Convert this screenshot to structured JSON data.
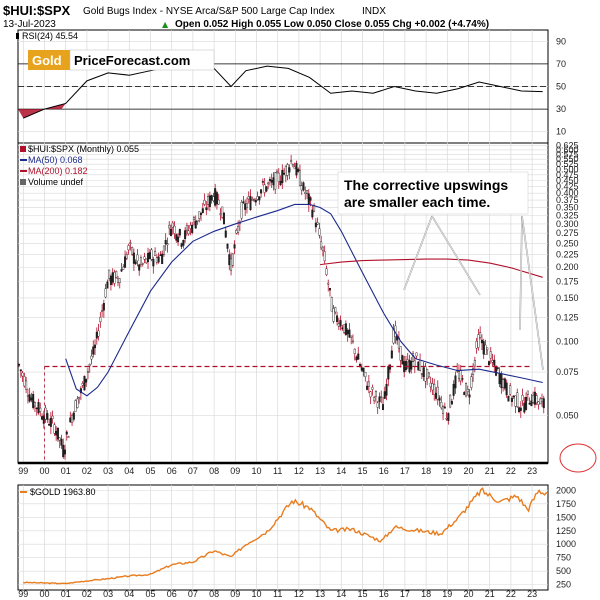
{
  "header": {
    "ticker": "$HUI:$SPX",
    "name": "Gold Bugs Index - NYSE Arca/S&P 500 Large Cap Index",
    "exchange": "INDX",
    "date": "13-Jul-2023",
    "ohlc": "Open 0.052  High 0.055  Low 0.050  Close 0.055  Chg +0.002 (+4.74%)",
    "ohlc_arrow": "▲"
  },
  "logo": {
    "gold": "Gold",
    "rest": "PriceForecast.com"
  },
  "colors": {
    "bars": "#b0102a",
    "ma50": "#1c2a8c",
    "ma200": "#b0102a",
    "gold": "#e87c1e",
    "rsi": "#000000",
    "grid": "#d9d9d9"
  },
  "chart_data": [
    {
      "type": "line",
      "panel": "rsi",
      "title": "RSI(24) 45.54",
      "yticks": [
        90,
        70,
        50,
        30,
        10
      ],
      "ylim": [
        0,
        100
      ],
      "reference_lines": [
        70,
        50,
        30
      ],
      "x": [
        1999.0,
        2000.0,
        2001.0,
        2002.0,
        2003.0,
        2004.0,
        2005.0,
        2006.0,
        2007.0,
        2008.0,
        2008.8,
        2009.5,
        2010.5,
        2011.5,
        2012.5,
        2013.5,
        2014.5,
        2015.5,
        2016.5,
        2017.5,
        2018.5,
        2019.5,
        2020.5,
        2021.5,
        2022.5,
        2023.5
      ],
      "values": [
        22,
        30,
        35,
        55,
        62,
        60,
        64,
        68,
        70,
        66,
        50,
        64,
        68,
        66,
        58,
        44,
        46,
        44,
        50,
        46,
        44,
        48,
        54,
        50,
        46,
        45.5
      ]
    },
    {
      "type": "candlestick",
      "panel": "main",
      "title": "$HUI:$SPX (Monthly) 0.055",
      "yscale": "log",
      "ylim": [
        0.032,
        0.64
      ],
      "yticks": [
        0.625,
        0.6,
        0.575,
        0.55,
        0.525,
        0.5,
        0.475,
        0.45,
        0.425,
        0.4,
        0.375,
        0.35,
        0.325,
        0.3,
        0.275,
        0.25,
        0.225,
        0.2,
        0.175,
        0.15,
        0.125,
        0.1,
        0.075,
        0.05
      ],
      "xticks": [
        "99",
        "00",
        "01",
        "02",
        "03",
        "04",
        "05",
        "06",
        "07",
        "08",
        "09",
        "10",
        "11",
        "12",
        "13",
        "14",
        "15",
        "16",
        "17",
        "18",
        "19",
        "20",
        "21",
        "22",
        "23"
      ],
      "xlim": [
        1998.75,
        2023.75
      ],
      "series": [
        {
          "name": "$HUI:$SPX (Monthly) 0.055",
          "x": [
            1998.8,
            1999.4,
            2000.0,
            2000.5,
            2000.9,
            2001.3,
            2001.8,
            2002.4,
            2003.0,
            2003.5,
            2004.0,
            2004.5,
            2005.0,
            2005.5,
            2006.0,
            2006.5,
            2007.0,
            2007.5,
            2008.0,
            2008.4,
            2008.8,
            2009.3,
            2009.8,
            2010.3,
            2010.8,
            2011.3,
            2011.7,
            2012.2,
            2012.7,
            2013.2,
            2013.6,
            2014.0,
            2014.5,
            2015.0,
            2015.5,
            2016.0,
            2016.5,
            2017.0,
            2017.5,
            2018.0,
            2018.5,
            2019.0,
            2019.5,
            2020.0,
            2020.5,
            2021.0,
            2021.5,
            2022.0,
            2022.5,
            2023.0,
            2023.5
          ],
          "values": [
            0.08,
            0.058,
            0.05,
            0.045,
            0.036,
            0.05,
            0.065,
            0.095,
            0.18,
            0.18,
            0.24,
            0.2,
            0.22,
            0.22,
            0.3,
            0.26,
            0.3,
            0.34,
            0.4,
            0.34,
            0.2,
            0.34,
            0.38,
            0.42,
            0.44,
            0.48,
            0.55,
            0.42,
            0.34,
            0.22,
            0.13,
            0.12,
            0.1,
            0.075,
            0.06,
            0.055,
            0.11,
            0.078,
            0.085,
            0.072,
            0.062,
            0.05,
            0.075,
            0.06,
            0.105,
            0.085,
            0.072,
            0.06,
            0.055,
            0.06,
            0.055
          ]
        },
        {
          "name": "MA(50) 0.068",
          "x": [
            2001.0,
            2001.5,
            2002.0,
            2002.5,
            2003.0,
            2004.0,
            2005.0,
            2006.0,
            2007.0,
            2008.0,
            2009.0,
            2010.0,
            2011.0,
            2011.8,
            2012.5,
            2013.0,
            2013.5,
            2014.0,
            2015.0,
            2016.0,
            2016.8,
            2017.5,
            2018.5,
            2019.5,
            2020.5,
            2021.5,
            2022.5,
            2023.5
          ],
          "values": [
            0.085,
            0.064,
            0.06,
            0.065,
            0.075,
            0.11,
            0.16,
            0.21,
            0.255,
            0.28,
            0.3,
            0.32,
            0.34,
            0.36,
            0.36,
            0.35,
            0.33,
            0.28,
            0.19,
            0.13,
            0.1,
            0.085,
            0.08,
            0.076,
            0.077,
            0.074,
            0.071,
            0.068
          ]
        },
        {
          "name": "MA(200) 0.182",
          "x": [
            2013.0,
            2014.0,
            2015.0,
            2016.0,
            2017.0,
            2018.0,
            2019.0,
            2020.0,
            2021.0,
            2022.0,
            2023.5
          ],
          "values": [
            0.205,
            0.21,
            0.213,
            0.214,
            0.215,
            0.216,
            0.216,
            0.214,
            0.208,
            0.199,
            0.182
          ]
        }
      ],
      "legend": [
        "$HUI:$SPX (Monthly) 0.055",
        "MA(50) 0.068",
        "MA(200) 0.182",
        "Volume undef"
      ],
      "legend_placement": "top-left",
      "annotations": [
        "The corrective upswings are smaller each time."
      ],
      "reference_line": 0.079
    },
    {
      "type": "line",
      "panel": "gold",
      "title": "$GOLD 1963.80",
      "yticks": [
        2000,
        1750,
        1500,
        1250,
        1000,
        750,
        500,
        250
      ],
      "ylim": [
        150,
        2100
      ],
      "x": [
        1999.0,
        2000.0,
        2001.0,
        2002.0,
        2003.0,
        2004.0,
        2005.0,
        2006.0,
        2007.0,
        2008.0,
        2008.8,
        2009.5,
        2010.5,
        2011.7,
        2012.5,
        2013.5,
        2014.5,
        2015.9,
        2016.5,
        2017.5,
        2018.7,
        2019.5,
        2020.6,
        2021.5,
        2022.3,
        2022.8,
        2023.3,
        2023.5
      ],
      "values": [
        290,
        280,
        270,
        320,
        360,
        410,
        440,
        620,
        670,
        880,
        760,
        1000,
        1240,
        1810,
        1680,
        1250,
        1280,
        1060,
        1320,
        1260,
        1200,
        1480,
        2000,
        1790,
        1900,
        1640,
        2000,
        1963.8
      ]
    }
  ]
}
